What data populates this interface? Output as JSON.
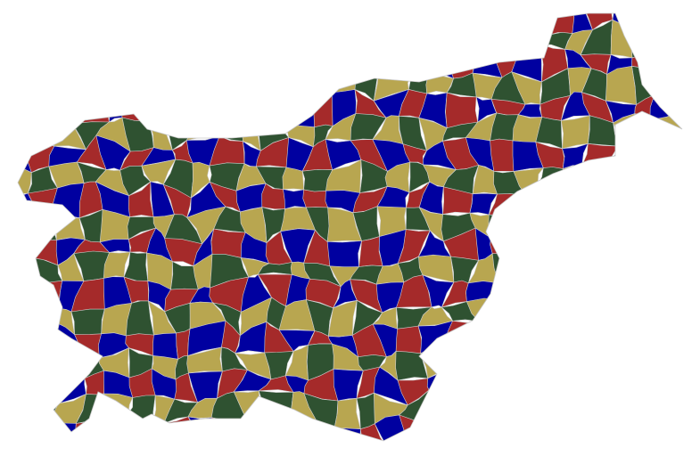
{
  "map": {
    "palette": [
      "#0000a0",
      "#a52a2a",
      "#b8a650",
      "#2f5231"
    ]
  }
}
